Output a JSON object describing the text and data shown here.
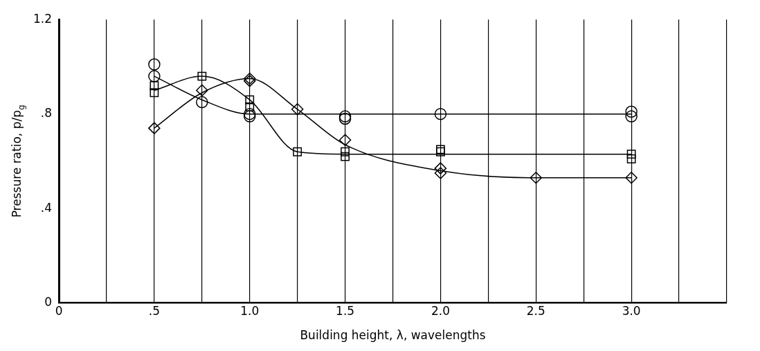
{
  "chart_data": {
    "type": "scatter",
    "xlabel": "Building height, λ, wavelengths",
    "ylabel": "Pressure ratio, p/p$_{g}$",
    "xlim": [
      0,
      3.5
    ],
    "ylim": [
      0,
      1.2
    ],
    "xticks": [
      0,
      {
        "value": 0.25,
        "label": null
      },
      {
        "value": 0.5,
        "label": ".5"
      },
      {
        "value": 0.75,
        "label": null
      },
      {
        "value": 1,
        "label": "1.0"
      },
      {
        "value": 1.25,
        "label": null
      },
      {
        "value": 1.5,
        "label": "1.5"
      },
      {
        "value": 1.75,
        "label": null
      },
      {
        "value": 2,
        "label": "2.0"
      },
      {
        "value": 2.25,
        "label": null
      },
      {
        "value": 2.5,
        "label": "2.5"
      },
      {
        "value": 2.75,
        "label": null
      },
      {
        "value": 3,
        "label": "3.0"
      },
      {
        "value": 3.25,
        "label": null
      },
      {
        "value": 3.5,
        "label": null
      }
    ],
    "yticks": [
      0,
      {
        "value": 0.4,
        "label": ".4"
      },
      {
        "value": 0.8,
        "label": ".8"
      },
      1.2
    ],
    "grid": "x",
    "legend": false,
    "series": [
      {
        "marker": "circle",
        "color": "#000000",
        "x": [
          0.5,
          0.5,
          0.75,
          1,
          1,
          1.5,
          1.5,
          2,
          3,
          3
        ],
        "values": [
          1.01,
          0.96,
          0.85,
          0.79,
          0.8,
          0.79,
          0.78,
          0.8,
          0.81,
          0.79
        ]
      },
      {
        "marker": "square",
        "color": "#000000",
        "x": [
          0.5,
          0.5,
          0.75,
          1,
          1,
          1.25,
          1.5,
          1.5,
          2,
          2,
          3,
          3
        ],
        "values": [
          0.92,
          0.89,
          0.96,
          0.86,
          0.83,
          0.64,
          0.64,
          0.62,
          0.65,
          0.64,
          0.63,
          0.61
        ]
      },
      {
        "marker": "diamond",
        "color": "#000000",
        "x": [
          0.5,
          0.75,
          1,
          1,
          1.25,
          1.5,
          2,
          2,
          2.5,
          3
        ],
        "values": [
          0.74,
          0.9,
          0.95,
          0.94,
          0.82,
          0.69,
          0.57,
          0.55,
          0.53,
          0.53
        ]
      },
      {
        "type": "line",
        "marker": "none",
        "color": "#000000",
        "x": [
          0.5,
          0.75,
          1,
          1.5,
          2,
          3
        ],
        "values": [
          0.96,
          0.86,
          0.8,
          0.8,
          0.8,
          0.8
        ]
      },
      {
        "type": "line",
        "marker": "none",
        "color": "#000000",
        "x": [
          0.5,
          0.75,
          1,
          1.25,
          1.5,
          2,
          3
        ],
        "values": [
          0.9,
          0.96,
          0.86,
          0.64,
          0.63,
          0.63,
          0.63
        ]
      },
      {
        "type": "line",
        "marker": "none",
        "color": "#000000",
        "x": [
          0.5,
          0.75,
          1,
          1.25,
          1.5,
          2,
          2.5,
          3
        ],
        "values": [
          0.74,
          0.89,
          0.95,
          0.82,
          0.67,
          0.56,
          0.53,
          0.53
        ]
      }
    ]
  }
}
